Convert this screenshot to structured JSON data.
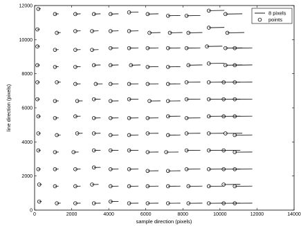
{
  "chart_data": {
    "type": "scatter",
    "title": "",
    "xlabel": "sample direction (pixels)",
    "ylabel": "line direction (pixels)",
    "xlim": [
      0,
      14000
    ],
    "ylim": [
      0,
      12000
    ],
    "xticks": [
      "0",
      "2000",
      "4000",
      "6000",
      "8000",
      "10000",
      "12000",
      "14000"
    ],
    "yticks": [
      "0",
      "2000",
      "4000",
      "6000",
      "8000",
      "10000",
      "12000"
    ],
    "grid": false,
    "legend": {
      "placement": "top-right",
      "entries": [
        {
          "label": "8 pixels",
          "marker": "line"
        },
        {
          "label": "points",
          "marker": "circle"
        }
      ]
    },
    "series": [
      {
        "name": "points",
        "marker": "circle",
        "points": [
          {
            "x": 200,
            "y": 11800
          },
          {
            "x": 1100,
            "y": 11500
          },
          {
            "x": 2200,
            "y": 11500
          },
          {
            "x": 3200,
            "y": 11500
          },
          {
            "x": 4100,
            "y": 11500
          },
          {
            "x": 5100,
            "y": 11600
          },
          {
            "x": 6100,
            "y": 11500
          },
          {
            "x": 7200,
            "y": 11400
          },
          {
            "x": 8200,
            "y": 11400
          },
          {
            "x": 9400,
            "y": 11700
          },
          {
            "x": 10300,
            "y": 11500
          },
          {
            "x": 150,
            "y": 10600
          },
          {
            "x": 1200,
            "y": 10400
          },
          {
            "x": 2200,
            "y": 10500
          },
          {
            "x": 3100,
            "y": 10500
          },
          {
            "x": 4100,
            "y": 10500
          },
          {
            "x": 5100,
            "y": 10500
          },
          {
            "x": 6200,
            "y": 10400
          },
          {
            "x": 7300,
            "y": 10400
          },
          {
            "x": 8300,
            "y": 10400
          },
          {
            "x": 9400,
            "y": 10700
          },
          {
            "x": 10400,
            "y": 10400
          },
          {
            "x": 150,
            "y": 9600
          },
          {
            "x": 1100,
            "y": 9400
          },
          {
            "x": 2200,
            "y": 9400
          },
          {
            "x": 3100,
            "y": 9400
          },
          {
            "x": 4100,
            "y": 9500
          },
          {
            "x": 5100,
            "y": 9500
          },
          {
            "x": 6100,
            "y": 9500
          },
          {
            "x": 7200,
            "y": 9500
          },
          {
            "x": 8200,
            "y": 9500
          },
          {
            "x": 9300,
            "y": 9600
          },
          {
            "x": 10300,
            "y": 9500
          },
          {
            "x": 10800,
            "y": 9500
          },
          {
            "x": 150,
            "y": 8500
          },
          {
            "x": 1100,
            "y": 8400
          },
          {
            "x": 2200,
            "y": 8400
          },
          {
            "x": 3200,
            "y": 8500
          },
          {
            "x": 4100,
            "y": 8500
          },
          {
            "x": 5200,
            "y": 8500
          },
          {
            "x": 6100,
            "y": 8400
          },
          {
            "x": 7200,
            "y": 8400
          },
          {
            "x": 8300,
            "y": 8500
          },
          {
            "x": 9400,
            "y": 8600
          },
          {
            "x": 10300,
            "y": 8500
          },
          {
            "x": 10800,
            "y": 8500
          },
          {
            "x": 150,
            "y": 7500
          },
          {
            "x": 1200,
            "y": 7500
          },
          {
            "x": 2200,
            "y": 7400
          },
          {
            "x": 3300,
            "y": 7400
          },
          {
            "x": 4100,
            "y": 7400
          },
          {
            "x": 5100,
            "y": 7400
          },
          {
            "x": 6100,
            "y": 7400
          },
          {
            "x": 7200,
            "y": 7400
          },
          {
            "x": 8200,
            "y": 7500
          },
          {
            "x": 9400,
            "y": 7500
          },
          {
            "x": 10200,
            "y": 7500
          },
          {
            "x": 10800,
            "y": 7500
          },
          {
            "x": 150,
            "y": 6500
          },
          {
            "x": 1100,
            "y": 6400
          },
          {
            "x": 2300,
            "y": 6400
          },
          {
            "x": 3200,
            "y": 6500
          },
          {
            "x": 4100,
            "y": 6400
          },
          {
            "x": 5100,
            "y": 6500
          },
          {
            "x": 6200,
            "y": 6400
          },
          {
            "x": 7200,
            "y": 6400
          },
          {
            "x": 8200,
            "y": 6500
          },
          {
            "x": 9400,
            "y": 6500
          },
          {
            "x": 10200,
            "y": 6500
          },
          {
            "x": 10800,
            "y": 6500
          },
          {
            "x": 200,
            "y": 5500
          },
          {
            "x": 1100,
            "y": 5400
          },
          {
            "x": 2200,
            "y": 5500
          },
          {
            "x": 3200,
            "y": 5400
          },
          {
            "x": 4100,
            "y": 5400
          },
          {
            "x": 5100,
            "y": 5400
          },
          {
            "x": 6100,
            "y": 5400
          },
          {
            "x": 7200,
            "y": 5500
          },
          {
            "x": 8200,
            "y": 5400
          },
          {
            "x": 9400,
            "y": 5500
          },
          {
            "x": 10200,
            "y": 5500
          },
          {
            "x": 10800,
            "y": 5500
          },
          {
            "x": 200,
            "y": 4500
          },
          {
            "x": 1200,
            "y": 4400
          },
          {
            "x": 2300,
            "y": 4500
          },
          {
            "x": 3200,
            "y": 4500
          },
          {
            "x": 4100,
            "y": 4400
          },
          {
            "x": 5100,
            "y": 4400
          },
          {
            "x": 6100,
            "y": 4500
          },
          {
            "x": 7200,
            "y": 4400
          },
          {
            "x": 8200,
            "y": 4500
          },
          {
            "x": 9400,
            "y": 4500
          },
          {
            "x": 10300,
            "y": 4500
          },
          {
            "x": 10800,
            "y": 4400
          },
          {
            "x": 200,
            "y": 3500
          },
          {
            "x": 1100,
            "y": 3400
          },
          {
            "x": 2100,
            "y": 3400
          },
          {
            "x": 3200,
            "y": 3500
          },
          {
            "x": 4100,
            "y": 3500
          },
          {
            "x": 5100,
            "y": 3500
          },
          {
            "x": 6100,
            "y": 3400
          },
          {
            "x": 7100,
            "y": 3400
          },
          {
            "x": 8200,
            "y": 3500
          },
          {
            "x": 9400,
            "y": 3500
          },
          {
            "x": 10200,
            "y": 3500
          },
          {
            "x": 10800,
            "y": 3400
          },
          {
            "x": 200,
            "y": 2400
          },
          {
            "x": 1100,
            "y": 2400
          },
          {
            "x": 2200,
            "y": 2400
          },
          {
            "x": 3200,
            "y": 2500
          },
          {
            "x": 4100,
            "y": 2400
          },
          {
            "x": 5100,
            "y": 2400
          },
          {
            "x": 6100,
            "y": 2300
          },
          {
            "x": 7200,
            "y": 2300
          },
          {
            "x": 8200,
            "y": 2400
          },
          {
            "x": 9400,
            "y": 2400
          },
          {
            "x": 10200,
            "y": 2400
          },
          {
            "x": 10800,
            "y": 2400
          },
          {
            "x": 250,
            "y": 1500
          },
          {
            "x": 1100,
            "y": 1400
          },
          {
            "x": 2200,
            "y": 1400
          },
          {
            "x": 3100,
            "y": 1500
          },
          {
            "x": 4100,
            "y": 1400
          },
          {
            "x": 5100,
            "y": 1400
          },
          {
            "x": 6100,
            "y": 1400
          },
          {
            "x": 7200,
            "y": 1400
          },
          {
            "x": 8300,
            "y": 1400
          },
          {
            "x": 9400,
            "y": 1400
          },
          {
            "x": 10200,
            "y": 1500
          },
          {
            "x": 10800,
            "y": 1400
          },
          {
            "x": 250,
            "y": 500
          },
          {
            "x": 1200,
            "y": 400
          },
          {
            "x": 2200,
            "y": 400
          },
          {
            "x": 3200,
            "y": 400
          },
          {
            "x": 4100,
            "y": 500
          },
          {
            "x": 5100,
            "y": 400
          },
          {
            "x": 6100,
            "y": 400
          },
          {
            "x": 7200,
            "y": 400
          },
          {
            "x": 8300,
            "y": 400
          },
          {
            "x": 9400,
            "y": 400
          },
          {
            "x": 10200,
            "y": 400
          },
          {
            "x": 10800,
            "y": 400
          }
        ]
      }
    ],
    "vector_scale_pixels_per_8": 800
  }
}
